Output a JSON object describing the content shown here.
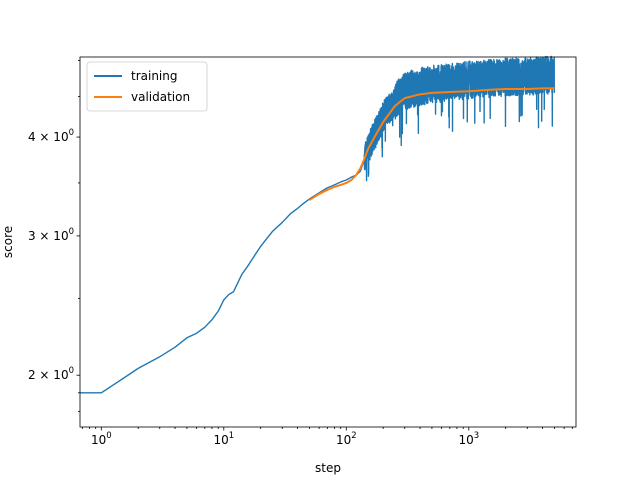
{
  "chart_data": {
    "type": "line",
    "title": "",
    "xlabel": "step",
    "ylabel": "score",
    "xscale": "log",
    "yscale": "log",
    "xlim": [
      0.67,
      7500
    ],
    "ylim": [
      1.72,
      5.05
    ],
    "grid": false,
    "legend": "top-left",
    "x_ticks": [
      {
        "value": 1,
        "base": "10",
        "exp": "0"
      },
      {
        "value": 10,
        "base": "10",
        "exp": "1"
      },
      {
        "value": 100,
        "base": "10",
        "exp": "2"
      },
      {
        "value": 1000,
        "base": "10",
        "exp": "3"
      }
    ],
    "y_ticks": [
      {
        "value": 2,
        "mant": "2",
        "base": "10",
        "exp": "0"
      },
      {
        "value": 3,
        "mant": "3",
        "base": "10",
        "exp": "0"
      },
      {
        "value": 4,
        "mant": "4",
        "base": "10",
        "exp": "0"
      }
    ],
    "series": [
      {
        "name": "training",
        "color": "#1f77b4",
        "x": [
          0.67,
          1,
          1.5,
          2,
          3,
          4,
          5,
          6,
          7,
          8,
          9,
          10,
          11,
          12,
          14,
          16,
          18,
          20,
          25,
          30,
          35,
          40,
          45,
          50,
          60,
          70,
          80,
          90,
          100,
          110,
          120,
          130,
          140,
          150,
          160,
          180,
          200,
          250,
          300,
          400,
          500,
          700,
          1000,
          1500,
          2000,
          3000,
          4000,
          5000
        ],
        "y": [
          1.9,
          1.9,
          1.98,
          2.04,
          2.11,
          2.17,
          2.23,
          2.26,
          2.3,
          2.35,
          2.41,
          2.49,
          2.53,
          2.55,
          2.68,
          2.76,
          2.84,
          2.91,
          3.04,
          3.12,
          3.2,
          3.25,
          3.3,
          3.34,
          3.4,
          3.45,
          3.48,
          3.51,
          3.53,
          3.56,
          3.58,
          3.62,
          3.74,
          3.86,
          3.95,
          4.1,
          4.25,
          4.45,
          4.58,
          4.64,
          4.67,
          4.7,
          4.73,
          4.75,
          4.77,
          4.78,
          4.79,
          4.8
        ],
        "noise": 0.11
      },
      {
        "name": "validation",
        "color": "#ff7f0e",
        "x": [
          50,
          60,
          70,
          80,
          90,
          100,
          110,
          120,
          130,
          140,
          150,
          170,
          200,
          250,
          300,
          400,
          500,
          700,
          1000,
          1500,
          2000,
          3000,
          4000,
          5000
        ],
        "y": [
          3.33,
          3.39,
          3.43,
          3.46,
          3.48,
          3.5,
          3.53,
          3.58,
          3.65,
          3.75,
          3.86,
          4.0,
          4.18,
          4.38,
          4.48,
          4.53,
          4.55,
          4.56,
          4.57,
          4.59,
          4.6,
          4.6,
          4.61,
          4.61
        ]
      }
    ]
  }
}
